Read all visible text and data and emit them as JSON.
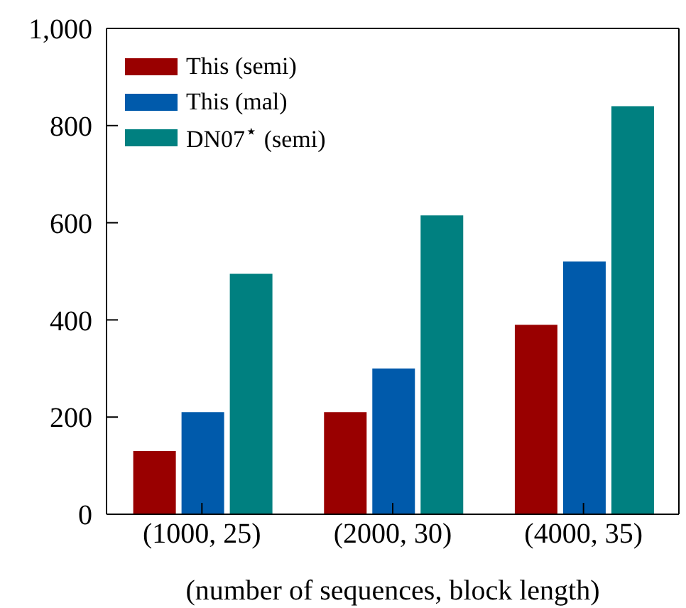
{
  "chart_data": {
    "type": "bar",
    "xlabel": "(number of sequences, block length)",
    "categories": [
      "(1000, 25)",
      "(2000, 30)",
      "(4000, 35)"
    ],
    "series": [
      {
        "name": "This (semi)",
        "color": "#990000",
        "values": [
          130,
          210,
          390
        ]
      },
      {
        "name": "This (mal)",
        "color": "#005aab",
        "values": [
          210,
          300,
          520
        ]
      },
      {
        "name": "DN07$^{⋆}$ (semi)",
        "color": "#008080",
        "values": [
          495,
          615,
          840
        ]
      }
    ],
    "ylim": [
      0,
      1000
    ],
    "yticks": [
      0,
      200,
      400,
      600,
      800,
      {
        "value": 1000,
        "label": "1,000"
      }
    ],
    "legend": "top left"
  }
}
